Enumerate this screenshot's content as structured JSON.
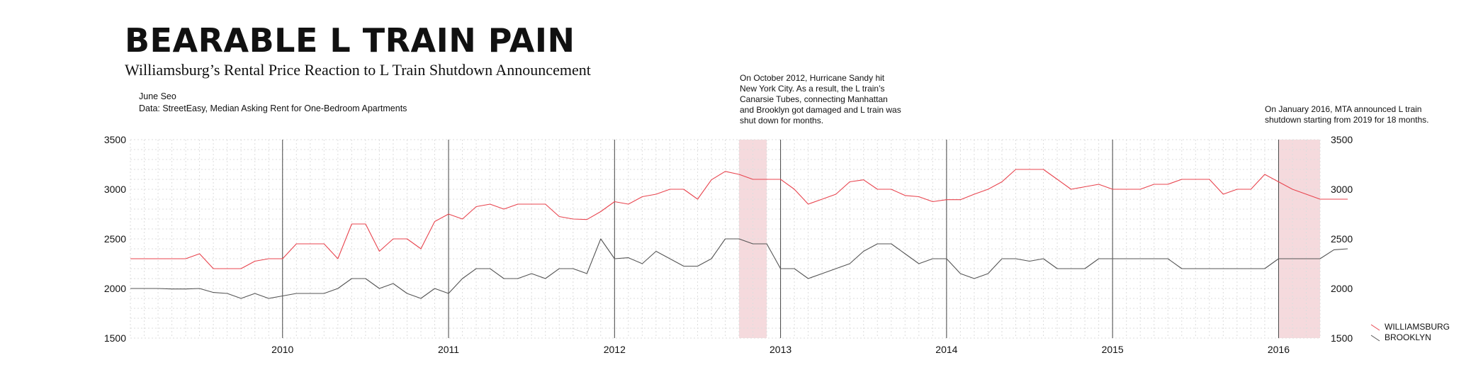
{
  "header": {
    "title": "BEARABLE L TRAIN PAIN",
    "subtitle": "Williamsburg’s Rental Price Reaction to L Train Shutdown Announcement",
    "author": "June Seo",
    "source": "Data: StreetEasy, Median Asking Rent for One-Bedroom Apartments"
  },
  "annotations": {
    "sandy": "On October 2012, Hurricane Sandy hit New York City. As a result, the L train’s Canarsie Tubes, connecting Manhattan and Brooklyn got damaged and L train was shut down for months.",
    "shutdown": "On January 2016, MTA announced L train shutdown starting from 2019 for 18 months."
  },
  "legend": {
    "williamsburg": "WILLIAMSBURG",
    "brooklyn": "BROOKLYN"
  },
  "colors": {
    "williamsburg": "#e8454f",
    "brooklyn": "#555555",
    "highlight": "#f5dadd",
    "year_line": "#444444",
    "grid": "#dddddd"
  },
  "chart_data": {
    "type": "line",
    "x_unit": "month",
    "x_start": "2009-02",
    "x_end": "2016-04",
    "x_ticks": [
      "2010",
      "2011",
      "2012",
      "2013",
      "2014",
      "2015",
      "2016"
    ],
    "y_ticks": [
      1500,
      2000,
      2500,
      3000,
      3500
    ],
    "ylim": [
      1500,
      3500
    ],
    "grid": true,
    "legend_position": "bottom-right",
    "highlights": [
      {
        "label": "Hurricane Sandy",
        "start": "2012-10",
        "end": "2012-12"
      },
      {
        "label": "Shutdown announcement",
        "start": "2016-01",
        "end": "2016-04"
      }
    ],
    "series": [
      {
        "name": "WILLIAMSBURG",
        "values": [
          2300,
          2300,
          2300,
          2300,
          2300,
          2350,
          2200,
          2200,
          2200,
          2275,
          2300,
          2300,
          2450,
          2450,
          2450,
          2300,
          2650,
          2650,
          2375,
          2500,
          2500,
          2400,
          2675,
          2750,
          2700,
          2825,
          2850,
          2800,
          2850,
          2850,
          2850,
          2725,
          2700,
          2695,
          2775,
          2875,
          2850,
          2925,
          2950,
          3000,
          3000,
          2900,
          3095,
          3180,
          3150,
          3100,
          3100,
          3100,
          3000,
          2850,
          2900,
          2950,
          3075,
          3095,
          3000,
          3000,
          2937,
          2925,
          2875,
          2895,
          2895,
          2950,
          3000,
          3075,
          3200,
          3200,
          3200,
          3100,
          3000,
          3025,
          3050,
          3000,
          3000,
          3000,
          3050,
          3050,
          3100,
          3100,
          3100,
          2950,
          3000,
          3000,
          3150,
          3075,
          3000,
          2950,
          2900,
          2900,
          2900
        ]
      },
      {
        "name": "BROOKLYN",
        "values": [
          2000,
          2000,
          2000,
          1995,
          1995,
          2000,
          1960,
          1950,
          1900,
          1950,
          1900,
          1925,
          1950,
          1950,
          1950,
          2000,
          2100,
          2100,
          2000,
          2050,
          1950,
          1900,
          2000,
          1950,
          2100,
          2200,
          2200,
          2100,
          2100,
          2150,
          2100,
          2200,
          2200,
          2150,
          2500,
          2300,
          2310,
          2250,
          2375,
          2300,
          2225,
          2225,
          2300,
          2500,
          2500,
          2450,
          2450,
          2200,
          2200,
          2100,
          2150,
          2200,
          2250,
          2375,
          2450,
          2450,
          2350,
          2250,
          2300,
          2300,
          2150,
          2100,
          2150,
          2300,
          2300,
          2275,
          2300,
          2200,
          2200,
          2200,
          2300,
          2300,
          2300,
          2300,
          2300,
          2300,
          2200,
          2200,
          2200,
          2200,
          2200,
          2200,
          2200,
          2300,
          2300,
          2300,
          2300,
          2390,
          2400
        ]
      }
    ]
  }
}
